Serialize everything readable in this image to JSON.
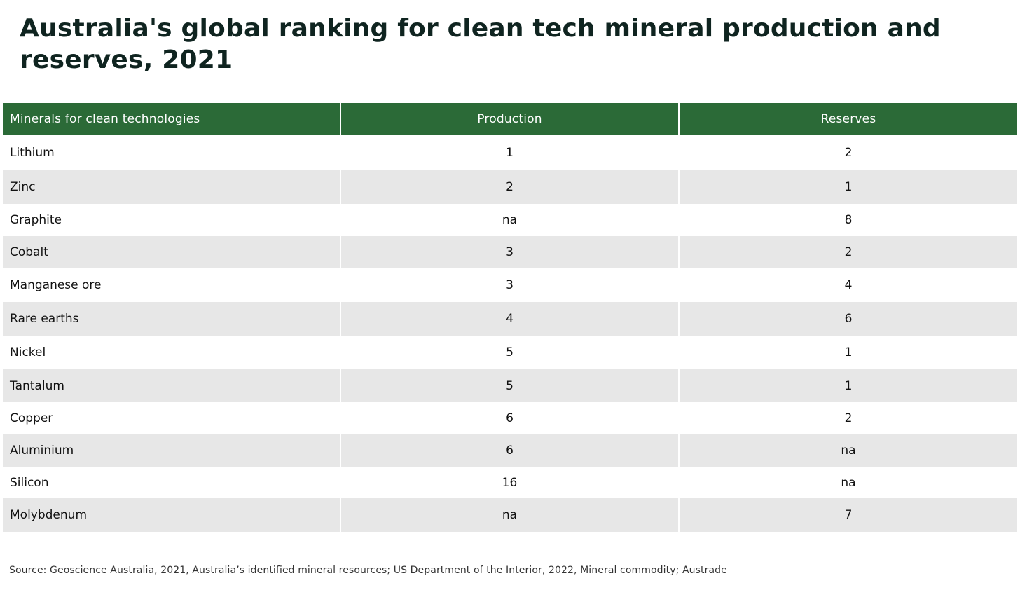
{
  "chart_data": {
    "type": "table",
    "title": "Australia's global ranking for clean tech mineral production and reserves, 2021",
    "columns": [
      "Minerals for clean technologies",
      "Production",
      "Reserves"
    ],
    "rows": [
      [
        "Lithium",
        "1",
        "2"
      ],
      [
        "Zinc",
        "2",
        "1"
      ],
      [
        "Graphite",
        "na",
        "8"
      ],
      [
        "Cobalt",
        "3",
        "2"
      ],
      [
        "Manganese ore",
        "3",
        "4"
      ],
      [
        "Rare earths",
        "4",
        "6"
      ],
      [
        "Nickel",
        "5",
        "1"
      ],
      [
        "Tantalum",
        "5",
        "1"
      ],
      [
        "Copper",
        "6",
        "2"
      ],
      [
        "Aluminium",
        "6",
        "na"
      ],
      [
        "Silicon",
        "16",
        "na"
      ],
      [
        "Molybdenum",
        "na",
        "7"
      ]
    ],
    "source": "Source: Geoscience Australia, 2021, Australia’s identified mineral resources; US Department of the Interior, 2022, Mineral commodity; Austrade"
  },
  "colors": {
    "header_background": "#2b6a37",
    "header_text": "#ffffff",
    "row_alternate": "#e7e7e7",
    "title_text": "#0f2420"
  }
}
